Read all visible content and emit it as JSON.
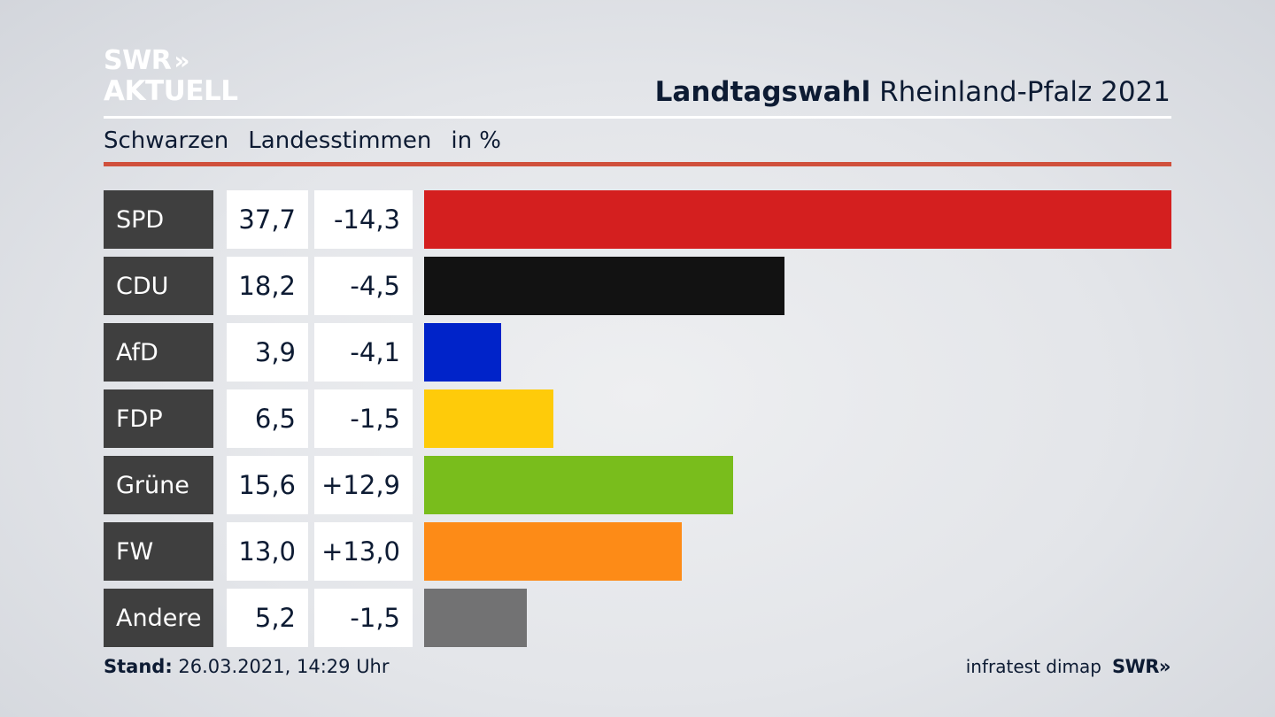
{
  "logo": {
    "line1": "SWR",
    "line2": "AKTUELL",
    "chevron": "»"
  },
  "header": {
    "title_bold": "Landtagswahl",
    "title_rest": "Rheinland-Pfalz 2021"
  },
  "subtitle": {
    "place": "Schwarzen",
    "vote_type": "Landesstimmen",
    "unit": "in %"
  },
  "colors": {
    "accent_rule": "#d0503c",
    "label_bg": "#3f3f3f"
  },
  "chart_data": {
    "type": "bar",
    "orientation": "horizontal",
    "title": "Landtagswahl Rheinland-Pfalz 2021",
    "unit": "in %",
    "categories": [
      "SPD",
      "CDU",
      "AfD",
      "FDP",
      "Grüne",
      "FW",
      "Andere"
    ],
    "values": [
      37.7,
      18.2,
      3.9,
      6.5,
      15.6,
      13.0,
      5.2
    ],
    "value_labels": [
      "37,7",
      "18,2",
      "3,9",
      "6,5",
      "15,6",
      "13,0",
      "5,2"
    ],
    "changes": [
      -14.3,
      -4.5,
      -4.1,
      -1.5,
      12.9,
      13.0,
      -1.5
    ],
    "change_labels": [
      "-14,3",
      "-4,5",
      "-4,1",
      "-1,5",
      "+12,9",
      "+13,0",
      "-1,5"
    ],
    "bar_colors": [
      "#d41f1f",
      "#121212",
      "#0023c9",
      "#fecb0a",
      "#79bd1c",
      "#fd8b17",
      "#727273"
    ],
    "xlim": [
      0,
      37.7
    ]
  },
  "footer": {
    "stand_label": "Stand:",
    "stand_value": "26.03.2021, 14:29 Uhr",
    "source": "infratest dimap",
    "brand": "SWR",
    "brand_chevron": "»"
  }
}
